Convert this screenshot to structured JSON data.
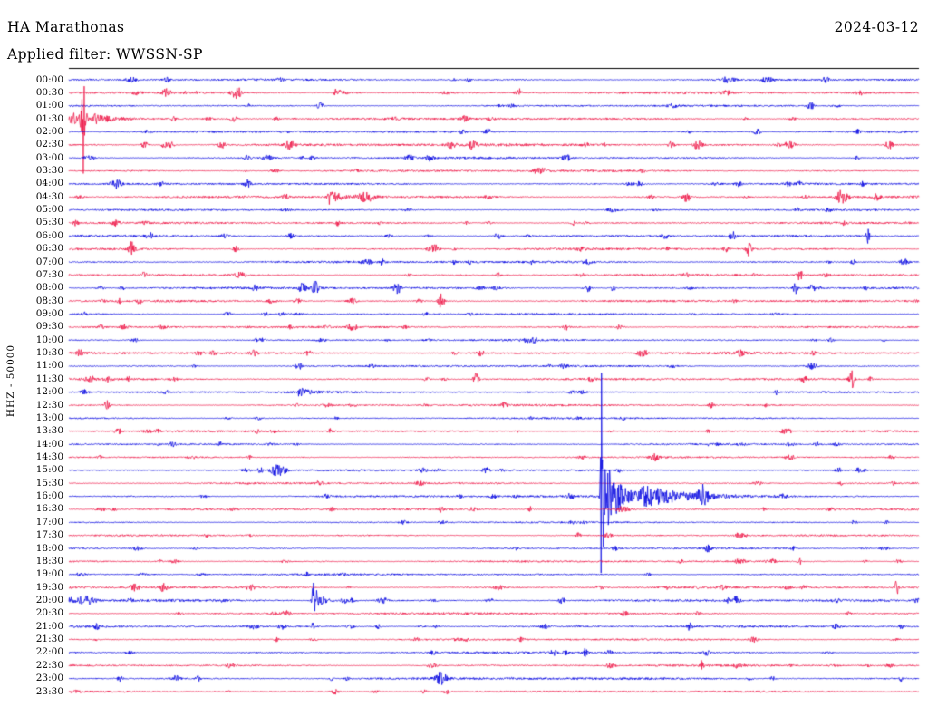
{
  "header": {
    "station_title": "HA Marathonas",
    "date": "2024-03-12",
    "filter_line": "Applied filter: WWSSN-SP"
  },
  "axis": {
    "left_label": "HHZ - 50000"
  },
  "colors": {
    "trace_blue": "#0000e0",
    "trace_red": "#ee1243",
    "frame": "#000000",
    "background": "#ffffff",
    "text": "#000000"
  },
  "chart_data": {
    "type": "seismogram",
    "station": "HA Marathonas",
    "channel": "HHZ",
    "scale": 50000,
    "date": "2024-03-12",
    "filter": "WWSSN-SP",
    "row_interval_minutes": 30,
    "time_range": [
      "00:00",
      "23:30"
    ],
    "legend_position": "none",
    "grid": false,
    "rows": [
      {
        "time": "00:00",
        "color": "blue",
        "noise": 1.0
      },
      {
        "time": "00:30",
        "color": "red",
        "noise": 1.15
      },
      {
        "time": "01:00",
        "color": "blue",
        "noise": 0.9
      },
      {
        "time": "01:30",
        "color": "red",
        "noise": 1.1
      },
      {
        "time": "02:00",
        "color": "blue",
        "noise": 1.0
      },
      {
        "time": "02:30",
        "color": "red",
        "noise": 1.35
      },
      {
        "time": "03:00",
        "color": "blue",
        "noise": 1.05
      },
      {
        "time": "03:30",
        "color": "red",
        "noise": 1.1
      },
      {
        "time": "04:00",
        "color": "blue",
        "noise": 1.0
      },
      {
        "time": "04:30",
        "color": "red",
        "noise": 1.15
      },
      {
        "time": "05:00",
        "color": "blue",
        "noise": 0.9
      },
      {
        "time": "05:30",
        "color": "red",
        "noise": 1.0
      },
      {
        "time": "06:00",
        "color": "blue",
        "noise": 1.0
      },
      {
        "time": "06:30",
        "color": "red",
        "noise": 1.1
      },
      {
        "time": "07:00",
        "color": "blue",
        "noise": 1.15
      },
      {
        "time": "07:30",
        "color": "red",
        "noise": 1.05
      },
      {
        "time": "08:00",
        "color": "blue",
        "noise": 1.1
      },
      {
        "time": "08:30",
        "color": "red",
        "noise": 1.05
      },
      {
        "time": "09:00",
        "color": "blue",
        "noise": 0.95
      },
      {
        "time": "09:30",
        "color": "red",
        "noise": 1.0
      },
      {
        "time": "10:00",
        "color": "blue",
        "noise": 0.9
      },
      {
        "time": "10:30",
        "color": "red",
        "noise": 1.2
      },
      {
        "time": "11:00",
        "color": "blue",
        "noise": 0.95
      },
      {
        "time": "11:30",
        "color": "red",
        "noise": 1.05
      },
      {
        "time": "12:00",
        "color": "blue",
        "noise": 1.0
      },
      {
        "time": "12:30",
        "color": "red",
        "noise": 1.0
      },
      {
        "time": "13:00",
        "color": "blue",
        "noise": 0.85
      },
      {
        "time": "13:30",
        "color": "red",
        "noise": 0.95
      },
      {
        "time": "14:00",
        "color": "blue",
        "noise": 0.8
      },
      {
        "time": "14:30",
        "color": "red",
        "noise": 0.85
      },
      {
        "time": "15:00",
        "color": "blue",
        "noise": 0.95
      },
      {
        "time": "15:30",
        "color": "red",
        "noise": 0.9
      },
      {
        "time": "16:00",
        "color": "blue",
        "noise": 1.0
      },
      {
        "time": "16:30",
        "color": "red",
        "noise": 1.0
      },
      {
        "time": "17:00",
        "color": "blue",
        "noise": 0.8
      },
      {
        "time": "17:30",
        "color": "red",
        "noise": 0.85
      },
      {
        "time": "18:00",
        "color": "blue",
        "noise": 0.8
      },
      {
        "time": "18:30",
        "color": "red",
        "noise": 0.9
      },
      {
        "time": "19:00",
        "color": "blue",
        "noise": 0.9
      },
      {
        "time": "19:30",
        "color": "red",
        "noise": 1.05
      },
      {
        "time": "20:00",
        "color": "blue",
        "noise": 1.1
      },
      {
        "time": "20:30",
        "color": "red",
        "noise": 1.05
      },
      {
        "time": "21:00",
        "color": "blue",
        "noise": 1.0
      },
      {
        "time": "21:30",
        "color": "red",
        "noise": 0.95
      },
      {
        "time": "22:00",
        "color": "blue",
        "noise": 1.0
      },
      {
        "time": "22:30",
        "color": "red",
        "noise": 1.0
      },
      {
        "time": "23:00",
        "color": "blue",
        "noise": 1.2
      },
      {
        "time": "23:30",
        "color": "red",
        "noise": 0.95
      }
    ],
    "events": [
      {
        "row": "00:00",
        "t0": 0.115,
        "amp": 3,
        "w": 0.004,
        "type": "burst"
      },
      {
        "row": "00:00",
        "t0": 0.47,
        "amp": 2.5,
        "w": 0.003,
        "type": "burst"
      },
      {
        "row": "00:30",
        "t0": 0.115,
        "amp": 4,
        "w": 0.005,
        "type": "burst"
      },
      {
        "row": "00:30",
        "t0": 0.2,
        "amp": 4,
        "w": 0.004,
        "type": "burst"
      },
      {
        "row": "00:30",
        "t0": 0.313,
        "amp": 5,
        "w": 0.006,
        "type": "quake"
      },
      {
        "row": "01:30",
        "t0": 0.005,
        "amp": 8,
        "w": 0.004,
        "type": "burst"
      },
      {
        "row": "01:30",
        "t0": 0.017,
        "amp": 60,
        "w": 0.0013,
        "type": "spike"
      },
      {
        "row": "01:30",
        "t0": 0.017,
        "amp": 18,
        "w": 0.004,
        "type": "burst"
      },
      {
        "row": "01:30",
        "t0": 0.03,
        "amp": 6,
        "w": 0.012,
        "type": "quake"
      },
      {
        "row": "02:00",
        "t0": 0.81,
        "amp": 4,
        "w": 0.004,
        "type": "burst"
      },
      {
        "row": "02:30",
        "t0": 0.12,
        "amp": 3.5,
        "w": 0.004,
        "type": "burst"
      },
      {
        "row": "02:30",
        "t0": 0.18,
        "amp": 4,
        "w": 0.004,
        "type": "burst"
      },
      {
        "row": "02:30",
        "t0": 0.26,
        "amp": 4.5,
        "w": 0.005,
        "type": "burst"
      },
      {
        "row": "02:30",
        "t0": 0.45,
        "amp": 3.5,
        "w": 0.004,
        "type": "burst"
      },
      {
        "row": "02:30",
        "t0": 0.475,
        "amp": 5,
        "w": 0.004,
        "type": "burst"
      },
      {
        "row": "02:30",
        "t0": 0.74,
        "amp": 6,
        "w": 0.005,
        "type": "burst"
      },
      {
        "row": "02:30",
        "t0": 0.85,
        "amp": 4,
        "w": 0.004,
        "type": "burst"
      },
      {
        "row": "02:30",
        "t0": 0.965,
        "amp": 5,
        "w": 0.004,
        "type": "burst"
      },
      {
        "row": "03:00",
        "t0": 0.585,
        "amp": 4,
        "w": 0.005,
        "type": "burst"
      },
      {
        "row": "04:00",
        "t0": 0.058,
        "amp": 4,
        "w": 0.004,
        "type": "burst"
      },
      {
        "row": "04:00",
        "t0": 0.21,
        "amp": 4,
        "w": 0.004,
        "type": "burst"
      },
      {
        "row": "04:30",
        "t0": 0.306,
        "amp": 9,
        "w": 0.006,
        "type": "quake"
      },
      {
        "row": "04:30",
        "t0": 0.35,
        "amp": 5,
        "w": 0.01,
        "type": "burst"
      },
      {
        "row": "04:30",
        "t0": 0.91,
        "amp": 8,
        "w": 0.007,
        "type": "burst"
      },
      {
        "row": "04:30",
        "t0": 0.95,
        "amp": 4,
        "w": 0.004,
        "type": "burst"
      },
      {
        "row": "06:00",
        "t0": 0.505,
        "amp": 4,
        "w": 0.004,
        "type": "burst"
      },
      {
        "row": "06:00",
        "t0": 0.78,
        "amp": 5,
        "w": 0.004,
        "type": "burst"
      },
      {
        "row": "06:00",
        "t0": 0.94,
        "amp": 8,
        "w": 0.002,
        "type": "spike"
      },
      {
        "row": "06:30",
        "t0": 0.073,
        "amp": 5,
        "w": 0.004,
        "type": "burst"
      },
      {
        "row": "06:30",
        "t0": 0.8,
        "amp": 8,
        "w": 0.003,
        "type": "spike"
      },
      {
        "row": "07:30",
        "t0": 0.86,
        "amp": 6,
        "w": 0.003,
        "type": "spike"
      },
      {
        "row": "08:00",
        "t0": 0.275,
        "amp": 6,
        "w": 0.004,
        "type": "burst"
      },
      {
        "row": "08:00",
        "t0": 0.29,
        "amp": 6,
        "w": 0.004,
        "type": "burst"
      },
      {
        "row": "08:00",
        "t0": 0.385,
        "amp": 4,
        "w": 0.004,
        "type": "burst"
      },
      {
        "row": "08:00",
        "t0": 0.61,
        "amp": 5,
        "w": 0.004,
        "type": "burst"
      },
      {
        "row": "08:00",
        "t0": 0.64,
        "amp": 4,
        "w": 0.003,
        "type": "burst"
      },
      {
        "row": "08:00",
        "t0": 0.855,
        "amp": 6,
        "w": 0.003,
        "type": "spike"
      },
      {
        "row": "08:00",
        "t0": 0.875,
        "amp": 5,
        "w": 0.003,
        "type": "burst"
      },
      {
        "row": "08:30",
        "t0": 0.438,
        "amp": 12,
        "w": 0.003,
        "type": "spike"
      },
      {
        "row": "09:30",
        "t0": 0.585,
        "amp": 3,
        "w": 0.004,
        "type": "burst"
      },
      {
        "row": "11:00",
        "t0": 0.27,
        "amp": 3,
        "w": 0.003,
        "type": "burst"
      },
      {
        "row": "11:30",
        "t0": 0.479,
        "amp": 10,
        "w": 0.003,
        "type": "spike"
      },
      {
        "row": "11:30",
        "t0": 0.921,
        "amp": 11,
        "w": 0.003,
        "type": "spike"
      },
      {
        "row": "12:00",
        "t0": 0.271,
        "amp": 5,
        "w": 0.006,
        "type": "quake"
      },
      {
        "row": "12:30",
        "t0": 0.045,
        "amp": 6,
        "w": 0.003,
        "type": "spike"
      },
      {
        "row": "13:30",
        "t0": 0.308,
        "amp": 3,
        "w": 0.003,
        "type": "burst"
      },
      {
        "row": "15:00",
        "t0": 0.225,
        "amp": 3,
        "w": 0.004,
        "type": "burst"
      },
      {
        "row": "15:00",
        "t0": 0.248,
        "amp": 7,
        "w": 0.008,
        "type": "burst"
      },
      {
        "row": "16:00",
        "t0": 0.59,
        "amp": 6,
        "w": 0.003,
        "type": "burst"
      },
      {
        "row": "16:00",
        "t0": 0.627,
        "amp": 160,
        "w": 0.0015,
        "type": "spike"
      },
      {
        "row": "16:00",
        "t0": 0.63,
        "amp": 45,
        "w": 0.009,
        "type": "quake"
      },
      {
        "row": "16:00",
        "t0": 0.68,
        "amp": 10,
        "w": 0.03,
        "type": "quake"
      },
      {
        "row": "16:00",
        "t0": 0.745,
        "amp": 10,
        "w": 0.005,
        "type": "burst"
      },
      {
        "row": "16:30",
        "t0": 0.65,
        "amp": 3,
        "w": 0.01,
        "type": "burst"
      },
      {
        "row": "18:30",
        "t0": 0.86,
        "amp": 3,
        "w": 0.003,
        "type": "burst"
      },
      {
        "row": "19:30",
        "t0": 0.111,
        "amp": 4,
        "w": 0.005,
        "type": "burst"
      },
      {
        "row": "19:30",
        "t0": 0.974,
        "amp": 9,
        "w": 0.002,
        "type": "spike"
      },
      {
        "row": "20:00",
        "t0": 0.02,
        "amp": 5,
        "w": 0.01,
        "type": "burst"
      },
      {
        "row": "20:00",
        "t0": 0.287,
        "amp": 55,
        "w": 0.0012,
        "type": "spike"
      },
      {
        "row": "20:00",
        "t0": 0.29,
        "amp": 14,
        "w": 0.004,
        "type": "quake"
      },
      {
        "row": "20:00",
        "t0": 0.58,
        "amp": 4,
        "w": 0.004,
        "type": "burst"
      },
      {
        "row": "20:00",
        "t0": 0.785,
        "amp": 5,
        "w": 0.004,
        "type": "burst"
      },
      {
        "row": "21:00",
        "t0": 0.287,
        "amp": 13,
        "w": 0.0012,
        "type": "spike"
      },
      {
        "row": "21:00",
        "t0": 0.73,
        "amp": 4,
        "w": 0.003,
        "type": "burst"
      },
      {
        "row": "22:00",
        "t0": 0.57,
        "amp": 3,
        "w": 0.003,
        "type": "burst"
      },
      {
        "row": "22:00",
        "t0": 0.607,
        "amp": 4,
        "w": 0.003,
        "type": "burst"
      },
      {
        "row": "22:30",
        "t0": 0.745,
        "amp": 6,
        "w": 0.002,
        "type": "spike"
      },
      {
        "row": "23:00",
        "t0": 0.06,
        "amp": 3,
        "w": 0.003,
        "type": "burst"
      },
      {
        "row": "23:00",
        "t0": 0.438,
        "amp": 7,
        "w": 0.007,
        "type": "burst"
      }
    ]
  }
}
